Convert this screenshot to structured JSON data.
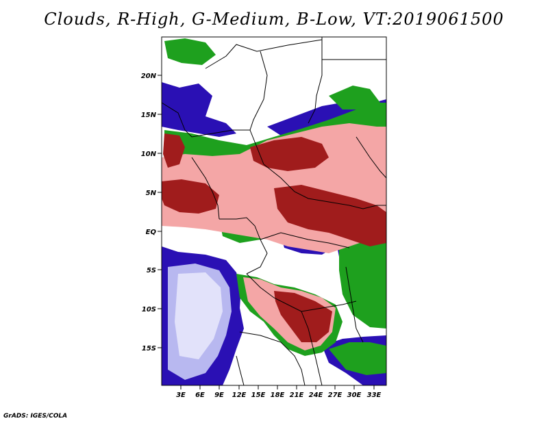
{
  "title": "Clouds, R-High, G-Medium, B-Low, VT:2019061500",
  "credit": "GrADS: IGES/COLA",
  "map": {
    "lat_ticks": [
      "20N",
      "15N",
      "10N",
      "5N",
      "EQ",
      "5S",
      "10S",
      "15S"
    ],
    "lon_ticks": [
      "3E",
      "6E",
      "9E",
      "12E",
      "15E",
      "18E",
      "21E",
      "24E",
      "27E",
      "30E",
      "33E"
    ],
    "colors": {
      "high_dark": "#a01c1c",
      "high_light": "#f4a6a6",
      "high_pale": "#fbd6d6",
      "medium": "#1ea01e",
      "low": "#2a10b4",
      "low_light": "#b8b8f0",
      "low_pale": "#e2e2fa",
      "border": "#000000"
    }
  }
}
